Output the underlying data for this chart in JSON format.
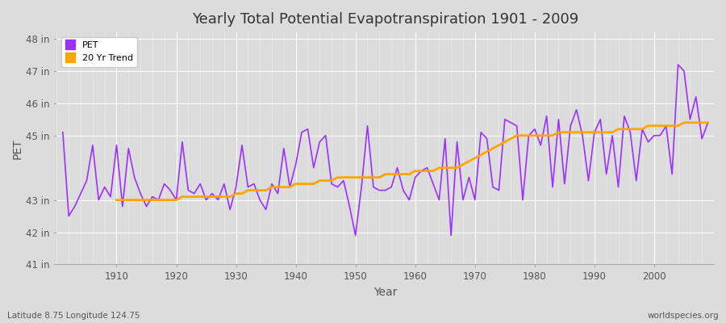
{
  "title": "Yearly Total Potential Evapotranspiration 1901 - 2009",
  "xlabel": "Year",
  "ylabel": "PET",
  "footnote_left": "Latitude 8.75 Longitude 124.75",
  "footnote_right": "worldspecies.org",
  "pet_color": "#9B30FF",
  "trend_color": "#FFA500",
  "background_color": "#DCDCDC",
  "grid_color": "#FFFFFF",
  "ylim": [
    41,
    48.2
  ],
  "yticks": [
    41,
    42,
    43,
    45,
    46,
    47,
    48
  ],
  "ytick_labels": [
    "41 in",
    "42 in",
    "43 in",
    "45 in",
    "46 in",
    "47 in",
    "48 in"
  ],
  "xlim": [
    1900,
    2010
  ],
  "xticks": [
    1910,
    1920,
    1930,
    1940,
    1950,
    1960,
    1970,
    1980,
    1990,
    2000
  ],
  "years": [
    1901,
    1902,
    1903,
    1904,
    1905,
    1906,
    1907,
    1908,
    1909,
    1910,
    1911,
    1912,
    1913,
    1914,
    1915,
    1916,
    1917,
    1918,
    1919,
    1920,
    1921,
    1922,
    1923,
    1924,
    1925,
    1926,
    1927,
    1928,
    1929,
    1930,
    1931,
    1932,
    1933,
    1934,
    1935,
    1936,
    1937,
    1938,
    1939,
    1940,
    1941,
    1942,
    1943,
    1944,
    1945,
    1946,
    1947,
    1948,
    1949,
    1950,
    1951,
    1952,
    1953,
    1954,
    1955,
    1956,
    1957,
    1958,
    1959,
    1960,
    1961,
    1962,
    1963,
    1964,
    1965,
    1966,
    1967,
    1968,
    1969,
    1970,
    1971,
    1972,
    1973,
    1974,
    1975,
    1976,
    1977,
    1978,
    1979,
    1980,
    1981,
    1982,
    1983,
    1984,
    1985,
    1986,
    1987,
    1988,
    1989,
    1990,
    1991,
    1992,
    1993,
    1994,
    1995,
    1996,
    1997,
    1998,
    1999,
    2000,
    2001,
    2002,
    2003,
    2004,
    2005,
    2006,
    2007,
    2008,
    2009
  ],
  "pet_values": [
    45.1,
    42.5,
    42.8,
    43.2,
    43.6,
    44.7,
    43.0,
    43.4,
    43.1,
    44.7,
    42.8,
    44.6,
    43.7,
    43.2,
    42.8,
    43.1,
    43.0,
    43.5,
    43.3,
    43.0,
    44.8,
    43.3,
    43.2,
    43.5,
    43.0,
    43.2,
    43.0,
    43.5,
    42.7,
    43.4,
    44.7,
    43.4,
    43.5,
    43.0,
    42.7,
    43.5,
    43.2,
    44.6,
    43.4,
    44.1,
    45.1,
    45.2,
    44.0,
    44.8,
    45.0,
    43.5,
    43.4,
    43.6,
    42.8,
    41.9,
    43.4,
    45.3,
    43.4,
    43.3,
    43.3,
    43.4,
    44.0,
    43.3,
    43.0,
    43.7,
    43.9,
    44.0,
    43.5,
    43.0,
    44.9,
    41.9,
    44.8,
    43.0,
    43.7,
    43.0,
    45.1,
    44.9,
    43.4,
    43.3,
    45.5,
    45.4,
    45.3,
    43.0,
    45.0,
    45.2,
    44.7,
    45.6,
    43.4,
    45.5,
    43.5,
    45.3,
    45.8,
    45.0,
    43.6,
    45.1,
    45.5,
    43.8,
    45.0,
    43.4,
    45.6,
    45.1,
    43.6,
    45.2,
    44.8,
    45.0,
    45.0,
    45.3,
    43.8,
    47.2,
    47.0,
    45.5,
    46.2,
    44.9,
    45.4
  ],
  "trend_values": [
    null,
    null,
    null,
    null,
    null,
    null,
    null,
    null,
    null,
    43.0,
    43.0,
    43.0,
    43.0,
    43.0,
    43.0,
    43.0,
    43.0,
    43.0,
    43.0,
    43.0,
    43.1,
    43.1,
    43.1,
    43.1,
    43.1,
    43.1,
    43.1,
    43.1,
    43.1,
    43.2,
    43.2,
    43.3,
    43.3,
    43.3,
    43.3,
    43.4,
    43.4,
    43.4,
    43.4,
    43.5,
    43.5,
    43.5,
    43.5,
    43.6,
    43.6,
    43.6,
    43.7,
    43.7,
    43.7,
    43.7,
    43.7,
    43.7,
    43.7,
    43.7,
    43.8,
    43.8,
    43.8,
    43.8,
    43.8,
    43.9,
    43.9,
    43.9,
    43.9,
    44.0,
    44.0,
    44.0,
    44.0,
    44.1,
    44.2,
    44.3,
    44.4,
    44.5,
    44.6,
    44.7,
    44.8,
    44.9,
    45.0,
    45.0,
    45.0,
    45.0,
    45.0,
    45.0,
    45.0,
    45.1,
    45.1,
    45.1,
    45.1,
    45.1,
    45.1,
    45.1,
    45.1,
    45.1,
    45.1,
    45.2,
    45.2,
    45.2,
    45.2,
    45.2,
    45.3,
    45.3,
    45.3,
    45.3,
    45.3,
    45.3,
    45.4,
    45.4,
    45.4,
    45.4,
    45.4
  ]
}
